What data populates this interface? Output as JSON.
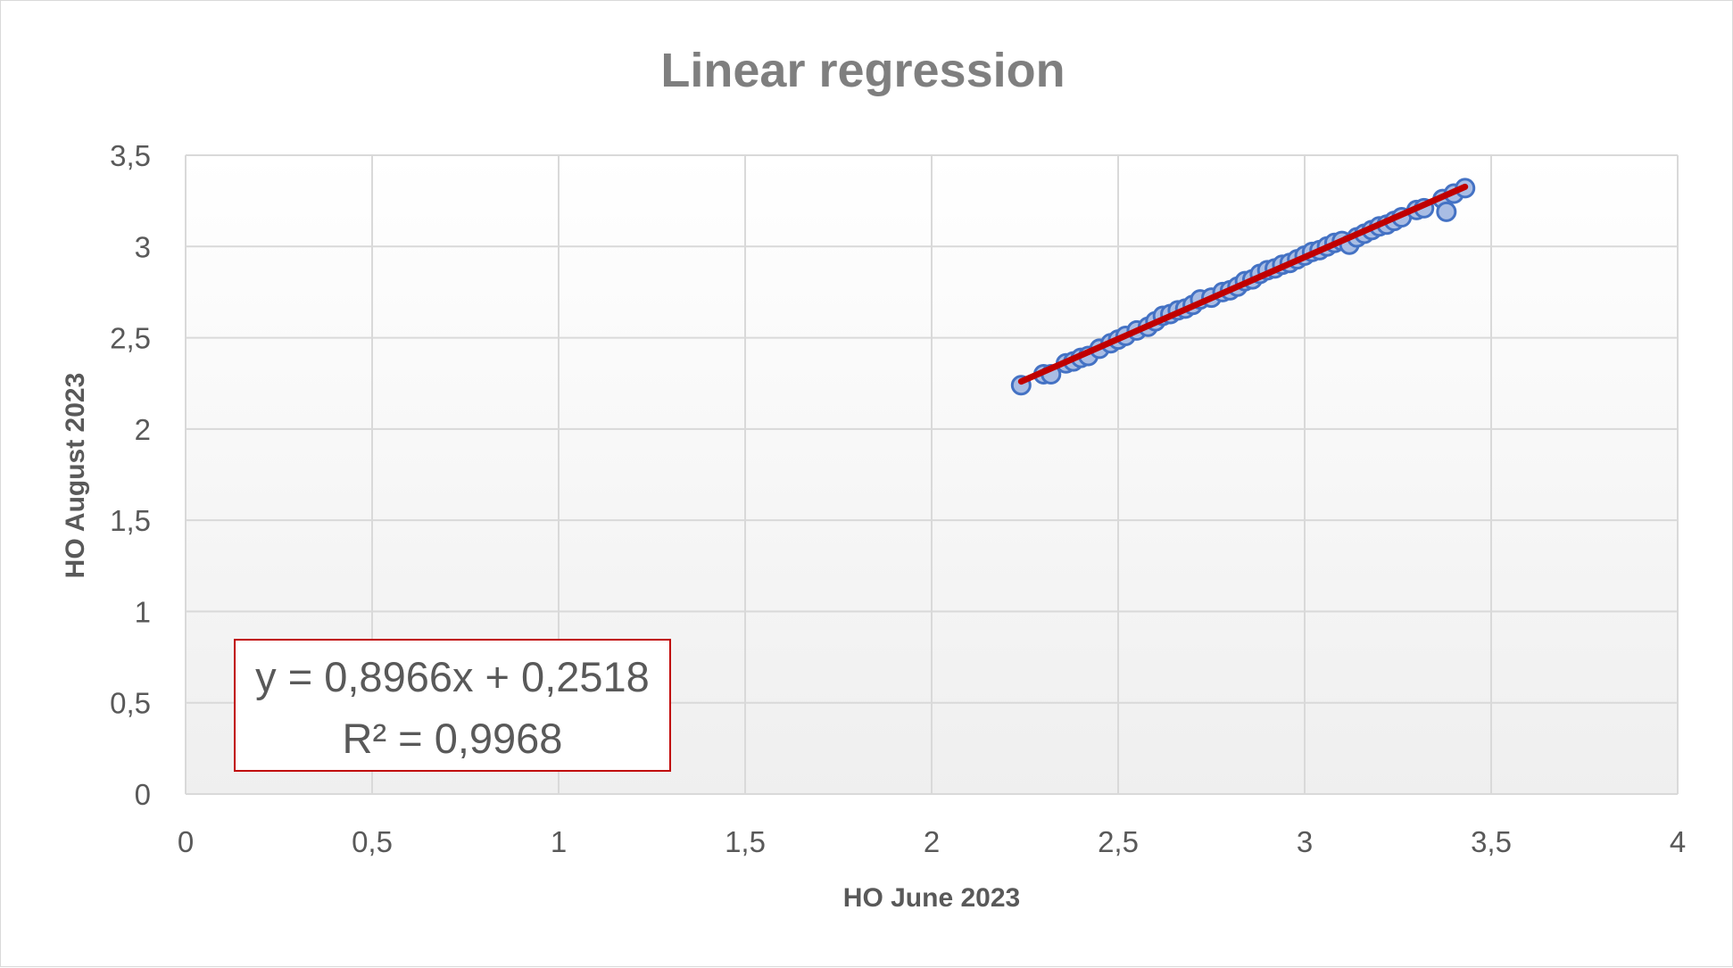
{
  "chart_data": {
    "type": "scatter",
    "title": "Linear regression",
    "xlabel": "HO June 2023",
    "ylabel": "HO August 2023",
    "xlim": [
      0,
      4
    ],
    "ylim": [
      0,
      3.5
    ],
    "x_ticks": [
      "0",
      "0,5",
      "1",
      "1,5",
      "2",
      "2,5",
      "3",
      "3,5",
      "4"
    ],
    "y_ticks": [
      "0",
      "0,5",
      "1",
      "1,5",
      "2",
      "2,5",
      "3",
      "3,5"
    ],
    "grid": true,
    "legend": "none",
    "series": [
      {
        "color": "#4472c4",
        "marker": "circle",
        "x": [
          2.24,
          2.3,
          2.32,
          2.36,
          2.38,
          2.4,
          2.42,
          2.45,
          2.48,
          2.5,
          2.52,
          2.55,
          2.58,
          2.6,
          2.62,
          2.64,
          2.66,
          2.68,
          2.7,
          2.72,
          2.75,
          2.78,
          2.8,
          2.82,
          2.84,
          2.86,
          2.88,
          2.9,
          2.92,
          2.94,
          2.96,
          2.98,
          3.0,
          3.02,
          3.04,
          3.06,
          3.08,
          3.1,
          3.12,
          3.14,
          3.16,
          3.18,
          3.2,
          3.22,
          3.24,
          3.26,
          3.3,
          3.32,
          3.37,
          3.38,
          3.4,
          3.43
        ],
        "y": [
          2.24,
          2.3,
          2.3,
          2.36,
          2.37,
          2.39,
          2.4,
          2.44,
          2.47,
          2.49,
          2.51,
          2.54,
          2.56,
          2.59,
          2.62,
          2.63,
          2.65,
          2.66,
          2.68,
          2.71,
          2.72,
          2.75,
          2.76,
          2.78,
          2.81,
          2.82,
          2.85,
          2.87,
          2.88,
          2.9,
          2.91,
          2.93,
          2.95,
          2.97,
          2.98,
          3.0,
          3.02,
          3.03,
          3.01,
          3.05,
          3.07,
          3.09,
          3.11,
          3.12,
          3.14,
          3.16,
          3.2,
          3.21,
          3.26,
          3.19,
          3.29,
          3.32
        ]
      }
    ],
    "trendline": {
      "type": "linear",
      "color": "#c00000",
      "slope": 0.8966,
      "intercept": 0.2518,
      "x_range": [
        2.24,
        3.43
      ],
      "equation_label": "y = 0,8966x + 0,2518",
      "r2_label": "R² = 0,9968"
    }
  }
}
